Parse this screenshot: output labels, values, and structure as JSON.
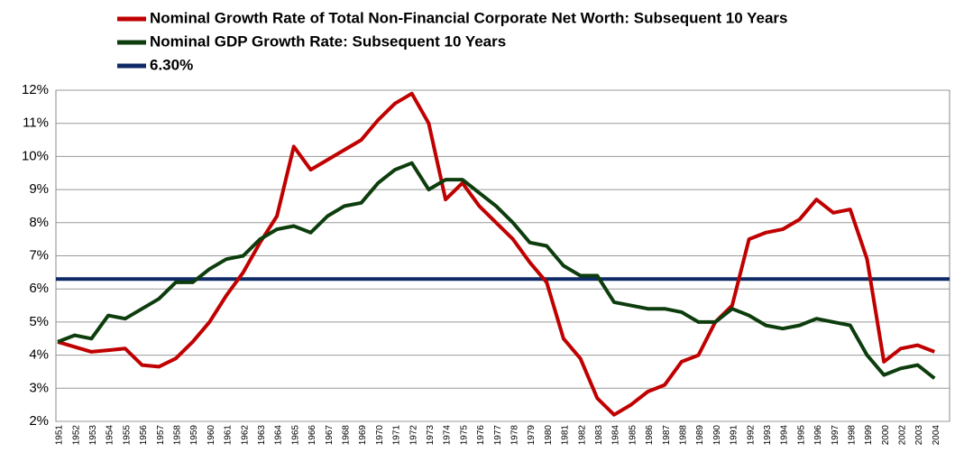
{
  "chart_data": {
    "type": "line",
    "categories": [
      "1951",
      "1952",
      "1953",
      "1954",
      "1955",
      "1956",
      "1957",
      "1958",
      "1959",
      "1960",
      "1961",
      "1962",
      "1963",
      "1964",
      "1965",
      "1966",
      "1967",
      "1968",
      "1969",
      "1970",
      "1971",
      "1972",
      "1973",
      "1974",
      "1975",
      "1976",
      "1977",
      "1978",
      "1979",
      "1980",
      "1981",
      "1982",
      "1983",
      "1984",
      "1985",
      "1986",
      "1987",
      "1988",
      "1989",
      "1990",
      "1991",
      "1992",
      "1993",
      "1994",
      "1995",
      "1996",
      "1997",
      "1998",
      "1999",
      "2000",
      "2002",
      "2003",
      "2004"
    ],
    "series": [
      {
        "name": "Nominal Growth Rate of Total Non-Financial  Corporate Net Worth: Subsequent 10 Years",
        "color": "#c00000",
        "values": [
          4.4,
          4.25,
          4.1,
          4.15,
          4.2,
          3.7,
          3.65,
          3.9,
          4.4,
          5.0,
          5.8,
          6.5,
          7.4,
          8.2,
          10.3,
          9.6,
          9.9,
          10.2,
          10.5,
          11.1,
          11.6,
          11.9,
          11.0,
          8.7,
          9.2,
          8.5,
          8.0,
          7.5,
          6.8,
          6.2,
          4.5,
          3.9,
          2.7,
          2.2,
          2.5,
          2.9,
          3.1,
          3.8,
          4.0,
          5.0,
          5.5,
          7.5,
          7.7,
          7.8,
          8.1,
          8.7,
          8.3,
          8.4,
          6.9,
          3.8,
          4.2,
          4.3,
          4.1
        ]
      },
      {
        "name": "Nominal GDP Growth Rate: Subsequent 10 Years",
        "color": "#0d3d0d",
        "values": [
          4.4,
          4.6,
          4.5,
          5.2,
          5.1,
          5.4,
          5.7,
          6.2,
          6.2,
          6.6,
          6.9,
          7.0,
          7.5,
          7.8,
          7.9,
          7.7,
          8.2,
          8.5,
          8.6,
          9.2,
          9.6,
          9.8,
          9.0,
          9.3,
          9.3,
          8.9,
          8.5,
          8.0,
          7.4,
          7.3,
          6.7,
          6.4,
          6.4,
          5.6,
          5.5,
          5.4,
          5.4,
          5.3,
          5.0,
          5.0,
          5.4,
          5.2,
          4.9,
          4.8,
          4.9,
          5.1,
          5.0,
          4.9,
          4.0,
          3.4,
          3.6,
          3.7,
          3.3
        ]
      }
    ],
    "hline": {
      "name": "6.30%",
      "value": 6.3,
      "color": "#0f2a66"
    },
    "ylim": [
      2,
      12
    ],
    "yticks": [
      {
        "value": 2,
        "label": "2%"
      },
      {
        "value": 3,
        "label": "3%"
      },
      {
        "value": 4,
        "label": "4%"
      },
      {
        "value": 5,
        "label": "5%"
      },
      {
        "value": 6,
        "label": "6%"
      },
      {
        "value": 7,
        "label": "7%"
      },
      {
        "value": 8,
        "label": "8%"
      },
      {
        "value": 9,
        "label": "9%"
      },
      {
        "value": 10,
        "label": "10%"
      },
      {
        "value": 11,
        "label": "11%"
      },
      {
        "value": 12,
        "label": "12%"
      }
    ],
    "grid": true
  }
}
